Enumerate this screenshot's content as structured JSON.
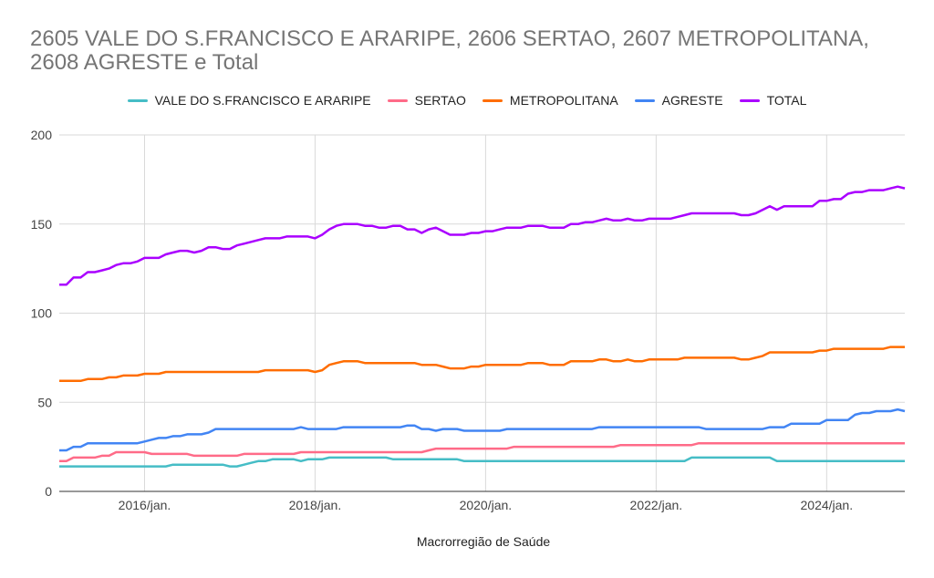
{
  "chart_data": {
    "type": "line",
    "title": "2605 VALE DO S.FRANCISCO E ARARIPE, 2606 SERTAO, 2607 METROPOLITANA, 2608 AGRESTE e Total",
    "xlabel": "Macrorregião de Saúde",
    "ylabel": "",
    "ylim": [
      0,
      200
    ],
    "yticks": [
      "0",
      "50",
      "100",
      "150",
      "200"
    ],
    "ytick_values": [
      0,
      50,
      100,
      150,
      200
    ],
    "xticks": [
      "2016/jan.",
      "2018/jan.",
      "2020/jan.",
      "2022/jan.",
      "2024/jan."
    ],
    "xtick_indices": [
      12,
      36,
      60,
      84,
      108
    ],
    "x_start": "2015/jan.",
    "x_end": "2024/dez.",
    "legend_position": "top",
    "grid": true,
    "series": [
      {
        "name": "VALE DO S.FRANCISCO E ARARIPE",
        "color": "#46BDC6",
        "values": [
          14,
          14,
          14,
          14,
          14,
          14,
          14,
          14,
          14,
          14,
          14,
          14,
          14,
          14,
          14,
          14,
          15,
          15,
          15,
          15,
          15,
          15,
          15,
          15,
          14,
          14,
          15,
          16,
          17,
          17,
          18,
          18,
          18,
          18,
          17,
          18,
          18,
          18,
          19,
          19,
          19,
          19,
          19,
          19,
          19,
          19,
          19,
          18,
          18,
          18,
          18,
          18,
          18,
          18,
          18,
          18,
          18,
          17,
          17,
          17,
          17,
          17,
          17,
          17,
          17,
          17,
          17,
          17,
          17,
          17,
          17,
          17,
          17,
          17,
          17,
          17,
          17,
          17,
          17,
          17,
          17,
          17,
          17,
          17,
          17,
          17,
          17,
          17,
          17,
          19,
          19,
          19,
          19,
          19,
          19,
          19,
          19,
          19,
          19,
          19,
          19,
          17,
          17,
          17,
          17,
          17,
          17,
          17,
          17,
          17,
          17,
          17,
          17,
          17,
          17,
          17,
          17,
          17,
          17,
          17
        ]
      },
      {
        "name": "SERTAO",
        "color": "#FF6B88",
        "values": [
          17,
          17,
          19,
          19,
          19,
          19,
          20,
          20,
          22,
          22,
          22,
          22,
          22,
          21,
          21,
          21,
          21,
          21,
          21,
          20,
          20,
          20,
          20,
          20,
          20,
          20,
          21,
          21,
          21,
          21,
          21,
          21,
          21,
          21,
          22,
          22,
          22,
          22,
          22,
          22,
          22,
          22,
          22,
          22,
          22,
          22,
          22,
          22,
          22,
          22,
          22,
          22,
          23,
          24,
          24,
          24,
          24,
          24,
          24,
          24,
          24,
          24,
          24,
          24,
          25,
          25,
          25,
          25,
          25,
          25,
          25,
          25,
          25,
          25,
          25,
          25,
          25,
          25,
          25,
          26,
          26,
          26,
          26,
          26,
          26,
          26,
          26,
          26,
          26,
          26,
          27,
          27,
          27,
          27,
          27,
          27,
          27,
          27,
          27,
          27,
          27,
          27,
          27,
          27,
          27,
          27,
          27,
          27,
          27,
          27,
          27,
          27,
          27,
          27,
          27,
          27,
          27,
          27,
          27,
          27
        ]
      },
      {
        "name": "METROPOLITANA",
        "color": "#FF6D01",
        "values": [
          62,
          62,
          62,
          62,
          63,
          63,
          63,
          64,
          64,
          65,
          65,
          65,
          66,
          66,
          66,
          67,
          67,
          67,
          67,
          67,
          67,
          67,
          67,
          67,
          67,
          67,
          67,
          67,
          67,
          68,
          68,
          68,
          68,
          68,
          68,
          68,
          67,
          68,
          71,
          72,
          73,
          73,
          73,
          72,
          72,
          72,
          72,
          72,
          72,
          72,
          72,
          71,
          71,
          71,
          70,
          69,
          69,
          69,
          70,
          70,
          71,
          71,
          71,
          71,
          71,
          71,
          72,
          72,
          72,
          71,
          71,
          71,
          73,
          73,
          73,
          73,
          74,
          74,
          73,
          73,
          74,
          73,
          73,
          74,
          74,
          74,
          74,
          74,
          75,
          75,
          75,
          75,
          75,
          75,
          75,
          75,
          74,
          74,
          75,
          76,
          78,
          78,
          78,
          78,
          78,
          78,
          78,
          79,
          79,
          80,
          80,
          80,
          80,
          80,
          80,
          80,
          80,
          81,
          81,
          81
        ]
      },
      {
        "name": "AGRESTE",
        "color": "#4285F4",
        "values": [
          23,
          23,
          25,
          25,
          27,
          27,
          27,
          27,
          27,
          27,
          27,
          27,
          28,
          29,
          30,
          30,
          31,
          31,
          32,
          32,
          32,
          33,
          35,
          35,
          35,
          35,
          35,
          35,
          35,
          35,
          35,
          35,
          35,
          35,
          36,
          35,
          35,
          35,
          35,
          35,
          36,
          36,
          36,
          36,
          36,
          36,
          36,
          36,
          36,
          37,
          37,
          35,
          35,
          34,
          35,
          35,
          35,
          34,
          34,
          34,
          34,
          34,
          34,
          35,
          35,
          35,
          35,
          35,
          35,
          35,
          35,
          35,
          35,
          35,
          35,
          35,
          36,
          36,
          36,
          36,
          36,
          36,
          36,
          36,
          36,
          36,
          36,
          36,
          36,
          36,
          36,
          35,
          35,
          35,
          35,
          35,
          35,
          35,
          35,
          35,
          36,
          36,
          36,
          38,
          38,
          38,
          38,
          38,
          40,
          40,
          40,
          40,
          43,
          44,
          44,
          45,
          45,
          45,
          46,
          45
        ]
      },
      {
        "name": "TOTAL",
        "color": "#AA00FF",
        "values": [
          116,
          116,
          120,
          120,
          123,
          123,
          124,
          125,
          127,
          128,
          128,
          129,
          131,
          131,
          131,
          133,
          134,
          135,
          135,
          134,
          135,
          137,
          137,
          136,
          136,
          138,
          139,
          140,
          141,
          142,
          142,
          142,
          143,
          143,
          143,
          143,
          142,
          144,
          147,
          149,
          150,
          150,
          150,
          149,
          149,
          148,
          148,
          149,
          149,
          147,
          147,
          145,
          147,
          148,
          146,
          144,
          144,
          144,
          145,
          145,
          146,
          146,
          147,
          148,
          148,
          148,
          149,
          149,
          149,
          148,
          148,
          148,
          150,
          150,
          151,
          151,
          152,
          153,
          152,
          152,
          153,
          152,
          152,
          153,
          153,
          153,
          153,
          154,
          155,
          156,
          156,
          156,
          156,
          156,
          156,
          156,
          155,
          155,
          156,
          158,
          160,
          158,
          160,
          160,
          160,
          160,
          160,
          163,
          163,
          164,
          164,
          167,
          168,
          168,
          169,
          169,
          169,
          170,
          171,
          170
        ]
      }
    ]
  }
}
